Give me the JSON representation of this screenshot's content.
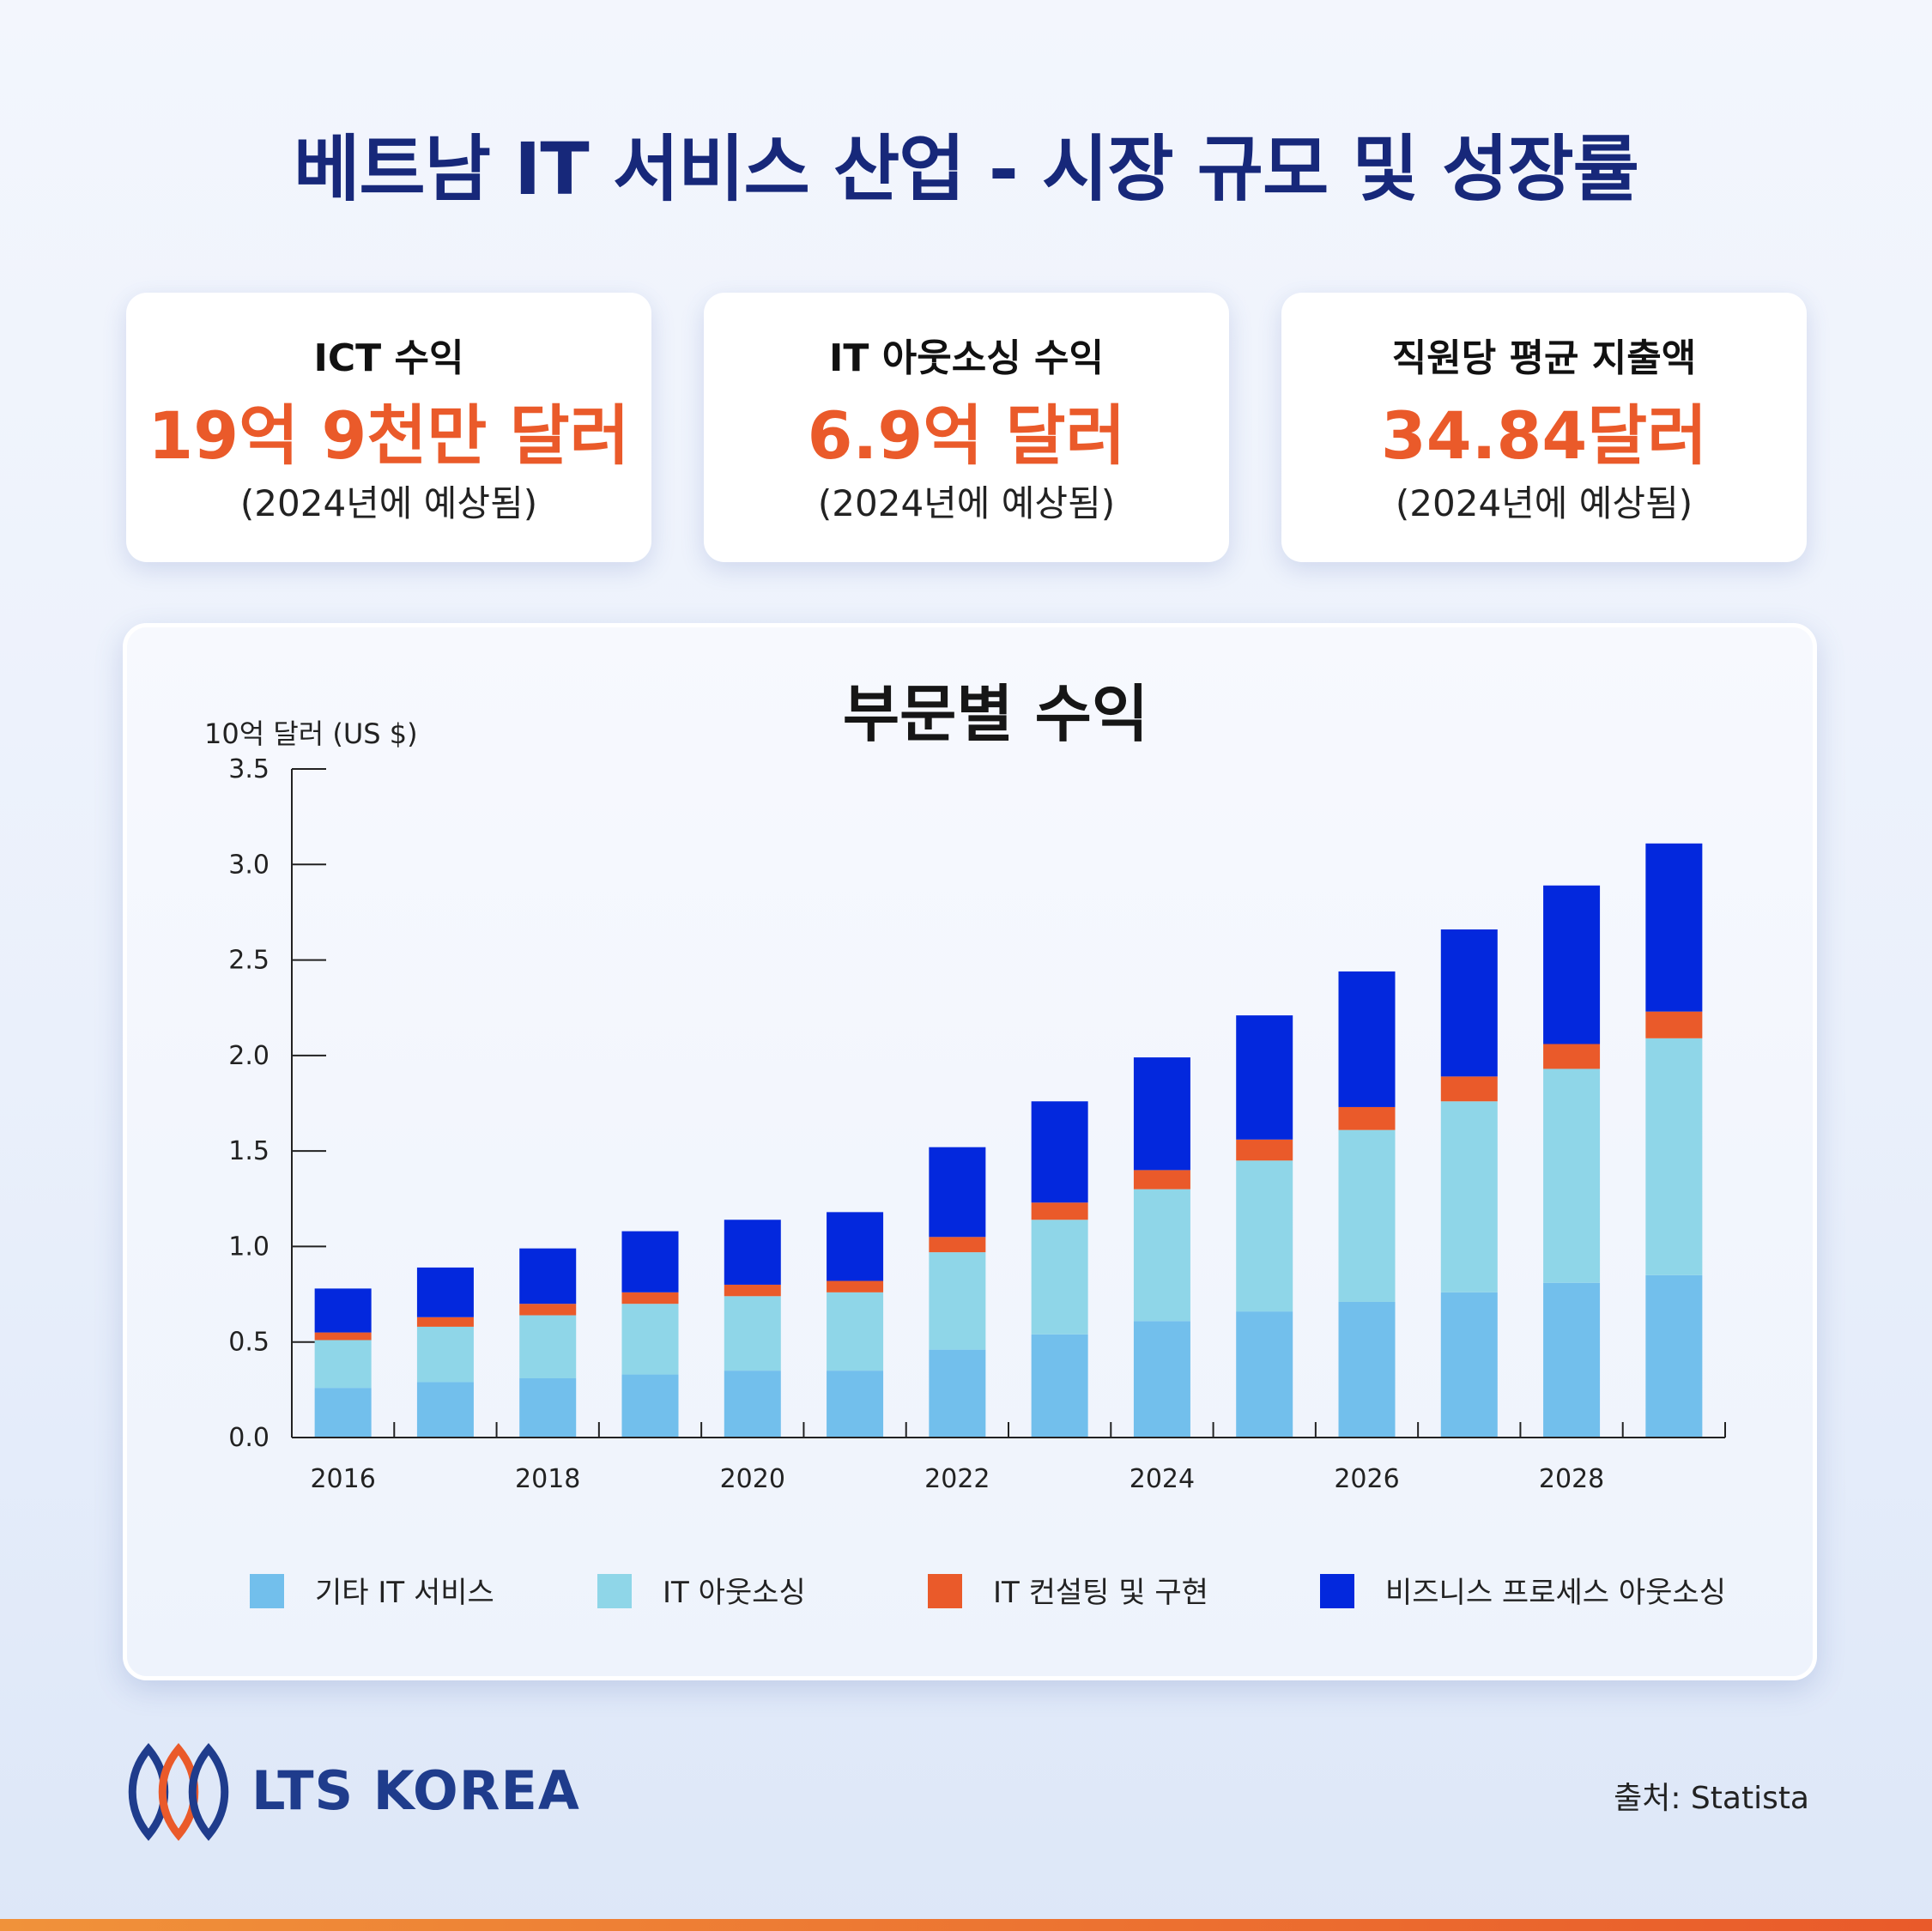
{
  "title": "베트남 IT 서비스 산업 - 시장 규모 및 성장률",
  "stats": [
    {
      "label": "ICT 수익",
      "value": "19억 9천만 달러",
      "note": "(2024년에 예상됨)"
    },
    {
      "label": "IT 아웃소싱 수익",
      "value": "6.9억 달러",
      "note": "(2024년에 예상됨)"
    },
    {
      "label": "직원당 평균 지출액",
      "value": "34.84달러",
      "note": "(2024년에 예상됨)"
    }
  ],
  "colors": {
    "accent": "#ea5a2a",
    "title": "#17287a",
    "series": [
      "#72bfec",
      "#8fd6e8",
      "#ea5a2a",
      "#0328dd"
    ]
  },
  "chart_data": {
    "type": "bar",
    "stacked": true,
    "title": "부문별 수익",
    "ylabel": "10억 달러 (US $)",
    "ylim": [
      0,
      3.5
    ],
    "yticks": [
      "0.0",
      "0.5",
      "1.0",
      "1.5",
      "2.0",
      "2.5",
      "3.0",
      "3.5"
    ],
    "categories": [
      "2016",
      "2017",
      "2018",
      "2019",
      "2020",
      "2021",
      "2022",
      "2023",
      "2024",
      "2025",
      "2026",
      "2027",
      "2028",
      "2029"
    ],
    "xtick_labels": [
      "2016",
      "",
      "2018",
      "",
      "2020",
      "",
      "2022",
      "",
      "2024",
      "",
      "2026",
      "",
      "2028",
      ""
    ],
    "series": [
      {
        "name": "기타 IT 서비스",
        "values": [
          0.26,
          0.29,
          0.31,
          0.33,
          0.35,
          0.35,
          0.46,
          0.54,
          0.61,
          0.66,
          0.71,
          0.76,
          0.81,
          0.85
        ]
      },
      {
        "name": "IT 아웃소싱",
        "values": [
          0.25,
          0.29,
          0.33,
          0.37,
          0.39,
          0.41,
          0.51,
          0.6,
          0.69,
          0.79,
          0.9,
          1.0,
          1.12,
          1.24
        ]
      },
      {
        "name": "IT 컨설팅 및 구현",
        "values": [
          0.04,
          0.05,
          0.06,
          0.06,
          0.06,
          0.06,
          0.08,
          0.09,
          0.1,
          0.11,
          0.12,
          0.13,
          0.13,
          0.14
        ]
      },
      {
        "name": "비즈니스 프로세스 아웃소싱",
        "values": [
          0.23,
          0.26,
          0.29,
          0.32,
          0.34,
          0.36,
          0.47,
          0.53,
          0.59,
          0.65,
          0.71,
          0.77,
          0.83,
          0.88
        ]
      }
    ],
    "legend_position": "bottom",
    "grid": false
  },
  "brand": {
    "name": "LTS KOREA"
  },
  "source": "출처: Statista"
}
